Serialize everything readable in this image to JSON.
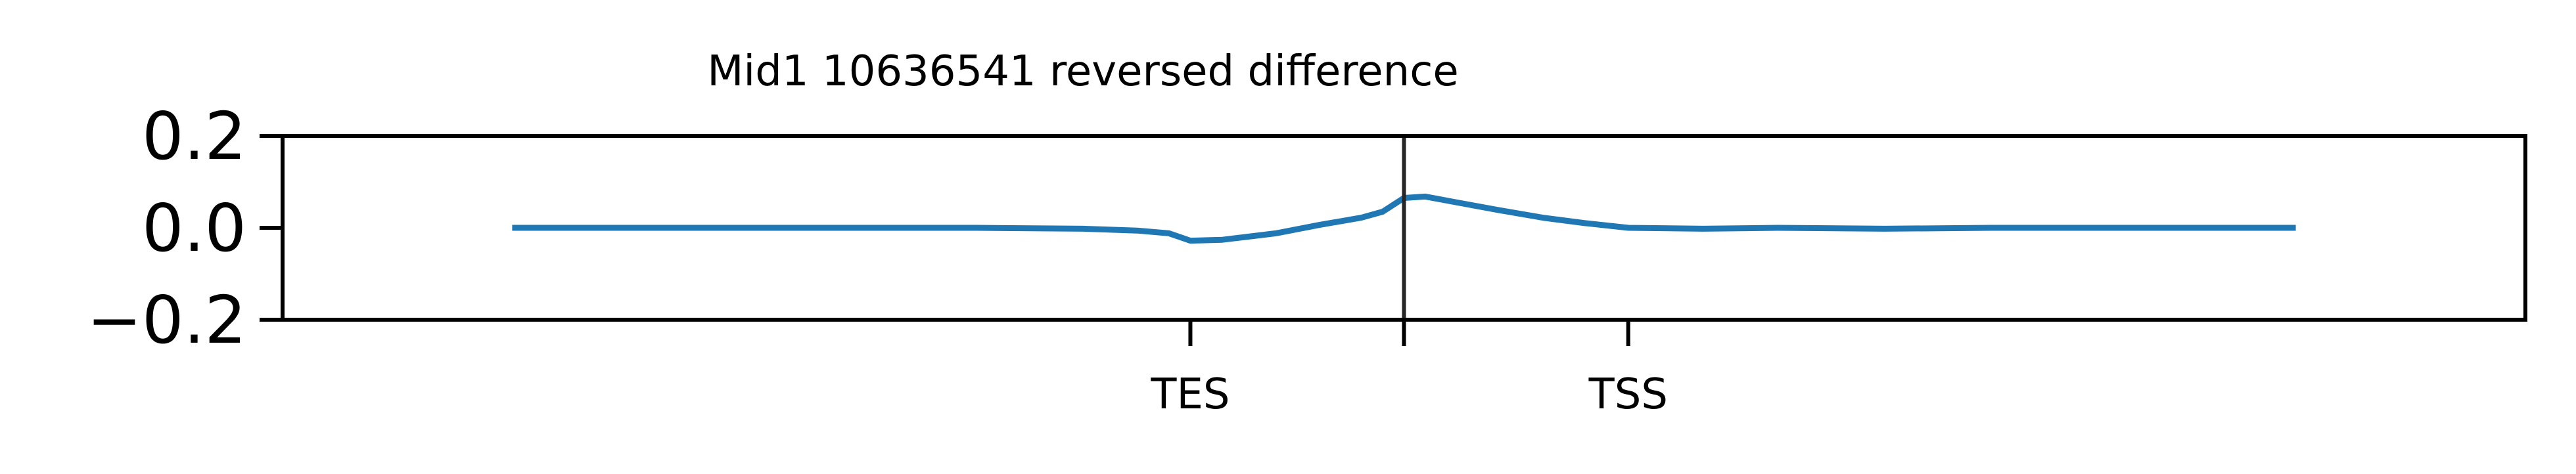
{
  "chart_data": {
    "type": "line",
    "title": "Mid1 10636541 reversed difference",
    "xlabel": "",
    "ylabel": "",
    "ylim": [
      -0.2,
      0.2
    ],
    "xlim": [
      -1.05,
      1.05
    ],
    "yticks": [
      {
        "value": 0.2,
        "label": "0.2"
      },
      {
        "value": 0.0,
        "label": "0.0"
      },
      {
        "value": -0.2,
        "label": "−0.2"
      }
    ],
    "xticks": [
      {
        "value": -0.2,
        "label": "TES"
      },
      {
        "value": 0.0,
        "label": ""
      },
      {
        "value": 0.21,
        "label": "TSS"
      }
    ],
    "vline_x": 0.0,
    "grid": false,
    "legend": "none",
    "colors": {
      "line": "#1f77b4",
      "axes": "#000000",
      "vline": "#262626"
    },
    "series": [
      {
        "x": [
          -0.835,
          -0.6,
          -0.4,
          -0.3,
          -0.25,
          -0.22,
          -0.2,
          -0.17,
          -0.12,
          -0.08,
          -0.04,
          -0.02,
          0.0,
          0.02,
          0.05,
          0.09,
          0.13,
          0.17,
          0.21,
          0.28,
          0.35,
          0.45,
          0.55,
          0.7,
          0.835
        ],
        "y": [
          0.0,
          0.0,
          0.0,
          -0.002,
          -0.006,
          -0.012,
          -0.028,
          -0.026,
          -0.012,
          0.006,
          0.022,
          0.035,
          0.065,
          0.068,
          0.055,
          0.038,
          0.022,
          0.01,
          0.0,
          -0.002,
          0.0,
          -0.002,
          0.0,
          0.0,
          0.0
        ]
      }
    ]
  }
}
